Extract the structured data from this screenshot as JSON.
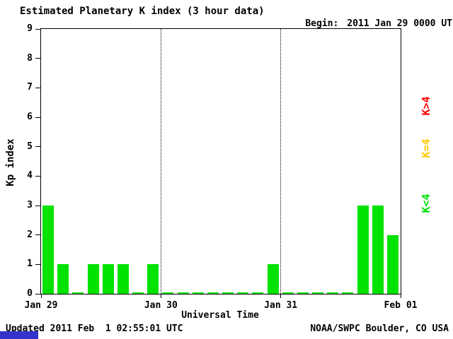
{
  "title": "Estimated Planetary K index (3 hour data)",
  "begin": {
    "label": "Begin:",
    "value": "2011 Jan 29 0000 UTC"
  },
  "footer": {
    "updated": "Updated 2011 Feb  1 02:55:01 UTC",
    "source": "NOAA/SWPC Boulder, CO USA"
  },
  "legend": [
    {
      "label": "K>4",
      "color": "#ff0000"
    },
    {
      "label": "K=4",
      "color": "#ffc800"
    },
    {
      "label": "K<4",
      "color": "#00e200"
    }
  ],
  "colors": {
    "bar_low": "#00e200",
    "bar_mid": "#ffc800",
    "bar_high": "#ff0000",
    "axis": "#000000",
    "background": "#ffffff",
    "blue_strip": "#3333cc"
  },
  "chart_data": {
    "type": "bar",
    "title": "Estimated Planetary K index (3 hour data)",
    "xlabel": "Universal Time",
    "ylabel": "Kp index",
    "ylim": [
      0,
      9
    ],
    "yticks": [
      0,
      1,
      2,
      3,
      4,
      5,
      6,
      7,
      8,
      9
    ],
    "x_tick_labels": [
      "Jan 29",
      "Jan 30",
      "Jan 31",
      "Feb 01"
    ],
    "interval_hours": 3,
    "grid": "dotted vertical lines at day boundaries",
    "legend_position": "right, rotated 90deg",
    "color_rule": "green if K<4, yellow if K=4, red if K>4",
    "series_note": "24 three-hour Kp values, Jan 29 00:00 UTC through Jan 31 24:00 UTC",
    "values": [
      3,
      1,
      0,
      1,
      1,
      1,
      0,
      1,
      0,
      0,
      0,
      0,
      0,
      0,
      0,
      1,
      0,
      0,
      0,
      0,
      0,
      3,
      3,
      2
    ]
  }
}
